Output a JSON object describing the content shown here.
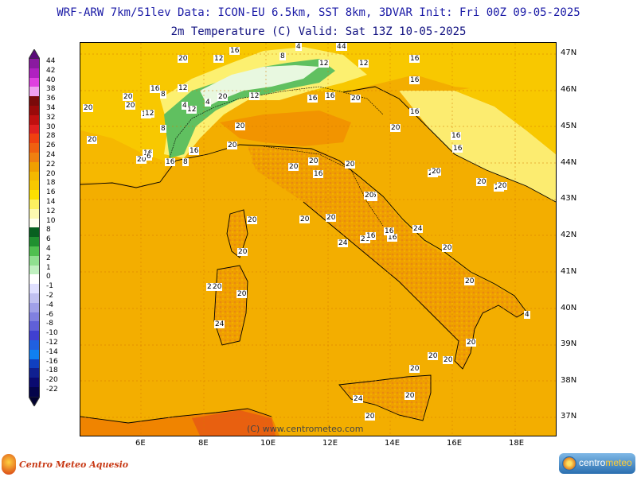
{
  "header": {
    "line1": "WRF-ARW 7km/51lev  Data: ICON-EU 6.5km, SST 8km, 3DVAR  Init: Fri 00Z 09-05-2025",
    "line2": "2m Temperature (C)  Valid: Sat 13Z 10-05-2025"
  },
  "colorbar": {
    "labels": [
      "44",
      "42",
      "40",
      "38",
      "36",
      "34",
      "32",
      "30",
      "28",
      "26",
      "24",
      "22",
      "20",
      "18",
      "16",
      "14",
      "12",
      "10",
      "8",
      "6",
      "4",
      "2",
      "1",
      "0",
      "-1",
      "-2",
      "-4",
      "-6",
      "-8",
      "-10",
      "-12",
      "-14",
      "-16",
      "-18",
      "-20",
      "-22"
    ],
    "colors": [
      "#8a1aa0",
      "#b020c0",
      "#e040e0",
      "#f0a0f0",
      "#7a0a0a",
      "#9a0a0a",
      "#c01010",
      "#e02020",
      "#f04010",
      "#f06010",
      "#f08010",
      "#f0a000",
      "#f4b800",
      "#f8c800",
      "#fce000",
      "#fcf060",
      "#fcf8b0",
      "#fffff0",
      "#086020",
      "#209030",
      "#50c050",
      "#90e090",
      "#c0f0c0",
      "#ffffff",
      "#e0e0ff",
      "#c0c0f0",
      "#a0a0e8",
      "#8080e0",
      "#6060d8",
      "#4040d0",
      "#2060e0",
      "#1080f0",
      "#1040c0",
      "#102090",
      "#0a0a70",
      "#04044a"
    ]
  },
  "axes": {
    "lat_labels": [
      "47N",
      "46N",
      "45N",
      "44N",
      "43N",
      "42N",
      "41N",
      "40N",
      "39N",
      "38N",
      "37N"
    ],
    "lon_labels": [
      "6E",
      "8E",
      "10E",
      "12E",
      "14E",
      "16E",
      "18E"
    ]
  },
  "isotherm_labels": [
    {
      "t": "20"
    },
    {
      "t": "12"
    },
    {
      "t": "16"
    },
    {
      "t": "8"
    },
    {
      "t": "4"
    },
    {
      "t": "4"
    },
    {
      "t": "12"
    },
    {
      "t": "4"
    },
    {
      "t": "12"
    },
    {
      "t": "16"
    },
    {
      "t": "16"
    },
    {
      "t": "16"
    },
    {
      "t": "8"
    },
    {
      "t": "12"
    },
    {
      "t": "20"
    },
    {
      "t": "20"
    },
    {
      "t": "4"
    },
    {
      "t": "12"
    },
    {
      "t": "4"
    },
    {
      "t": "12"
    },
    {
      "t": "12"
    },
    {
      "t": "16"
    },
    {
      "t": "16"
    },
    {
      "t": "20"
    },
    {
      "t": "20"
    },
    {
      "t": "16"
    },
    {
      "t": "20"
    },
    {
      "t": "20"
    },
    {
      "t": "20"
    },
    {
      "t": "12"
    },
    {
      "t": "8"
    },
    {
      "t": "20"
    },
    {
      "t": "8"
    },
    {
      "t": "20"
    },
    {
      "t": "16"
    },
    {
      "t": "16"
    },
    {
      "t": "20"
    },
    {
      "t": "6"
    },
    {
      "t": "16"
    },
    {
      "t": "20"
    },
    {
      "t": "20"
    },
    {
      "t": "16"
    },
    {
      "t": "20"
    },
    {
      "t": "20"
    },
    {
      "t": "16"
    },
    {
      "t": "16"
    },
    {
      "t": "20"
    },
    {
      "t": "20"
    },
    {
      "t": "20"
    },
    {
      "t": "16"
    },
    {
      "t": "20"
    },
    {
      "t": "20"
    },
    {
      "t": "24"
    },
    {
      "t": "16"
    },
    {
      "t": "20"
    },
    {
      "t": "20"
    },
    {
      "t": "20"
    },
    {
      "t": "20"
    },
    {
      "t": "20"
    },
    {
      "t": "20"
    },
    {
      "t": "20"
    },
    {
      "t": "20"
    },
    {
      "t": "24"
    },
    {
      "t": "20"
    },
    {
      "t": "20"
    },
    {
      "t": "20"
    },
    {
      "t": "20"
    },
    {
      "t": "24"
    },
    {
      "t": "20"
    },
    {
      "t": "20"
    },
    {
      "t": "20"
    },
    {
      "t": "24"
    },
    {
      "t": "16"
    },
    {
      "t": "16"
    },
    {
      "t": "20"
    },
    {
      "t": "20"
    },
    {
      "t": "4"
    }
  ],
  "watermark": "(C) www.centrometeo.com",
  "logos": {
    "left": "Centro Meteo Aquesio",
    "right_a": "centro",
    "right_b": "meteo"
  }
}
